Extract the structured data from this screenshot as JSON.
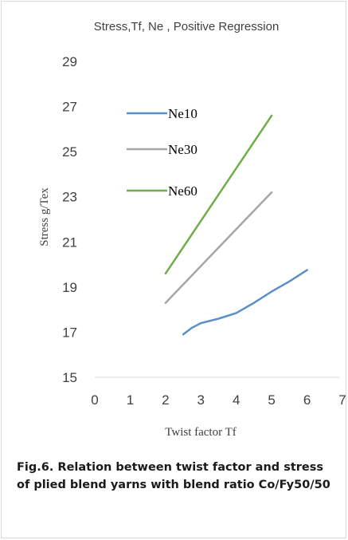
{
  "caption": "Fig.6. Relation between twist factor and stress of plied blend yarns with blend ratio Co/Fy50/50",
  "chart_data": {
    "type": "line",
    "title": "Stress,Tf, Ne , Positive Regression",
    "xlabel": "Twist factor Tf",
    "ylabel": "Stress g/Tex",
    "xlim": [
      0,
      7
    ],
    "ylim": [
      15,
      29
    ],
    "x_ticks": [
      "0",
      "1",
      "2",
      "3",
      "4",
      "5",
      "6",
      "7"
    ],
    "y_ticks": [
      "15",
      "17",
      "19",
      "21",
      "23",
      "25",
      "27",
      "29"
    ],
    "grid": {
      "horizontal": false,
      "vertical": false
    },
    "legend": {
      "position": "top-left"
    },
    "series": [
      {
        "name": "Ne10",
        "color": "#5b8fc9",
        "points": [
          [
            2.5,
            16.9
          ],
          [
            2.75,
            17.2
          ],
          [
            3.0,
            17.4
          ],
          [
            3.5,
            17.6
          ],
          [
            4.0,
            17.85
          ],
          [
            4.5,
            18.3
          ],
          [
            5.0,
            18.8
          ],
          [
            5.5,
            19.25
          ],
          [
            6.0,
            19.75
          ]
        ]
      },
      {
        "name": "Ne30",
        "color": "#a6a6a6",
        "points": [
          [
            2.0,
            18.3
          ],
          [
            5.0,
            23.2
          ]
        ]
      },
      {
        "name": "Ne60",
        "color": "#70ad47",
        "points": [
          [
            2.0,
            19.6
          ],
          [
            5.0,
            26.6
          ]
        ]
      }
    ]
  }
}
